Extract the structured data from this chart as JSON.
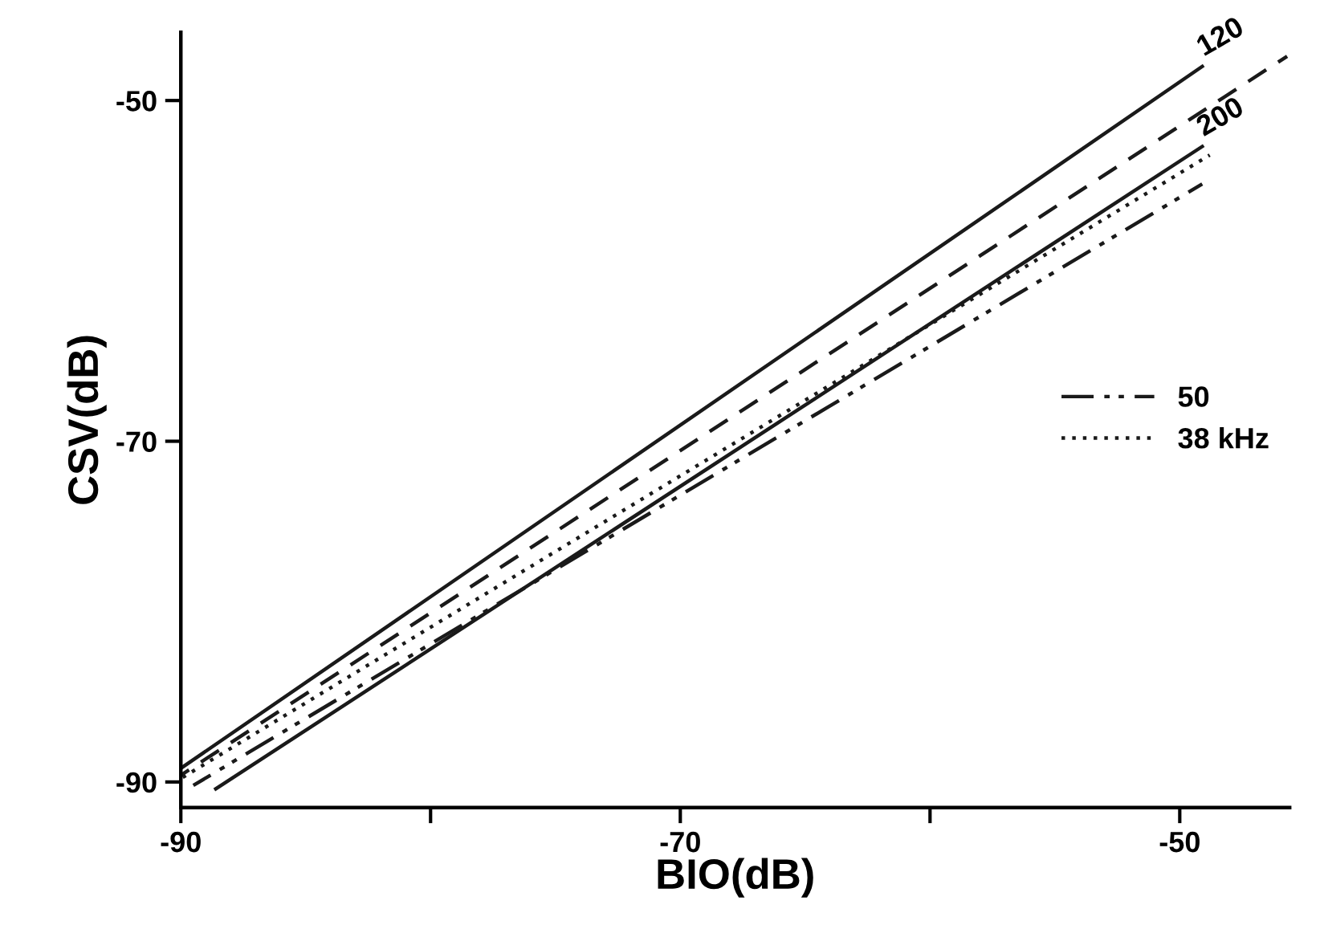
{
  "chart_data": {
    "type": "line",
    "xlabel": "BIO(dB)",
    "ylabel": "CSV(dB)",
    "xlim": [
      -90,
      -45.6
    ],
    "ylim": [
      -91.5,
      -46
    ],
    "xticks": [
      -90,
      {
        "value": -80,
        "label": null
      },
      -70,
      {
        "value": -60,
        "label": null
      },
      -50
    ],
    "yticks": [
      -90,
      -70,
      -50
    ],
    "grid": false,
    "legend": "right",
    "marker": "none",
    "series": [
      {
        "color": "#1a1a1a",
        "line_style": "solid",
        "x": [
          -90,
          -49.1
        ],
        "values": [
          -89.2,
          -48.0
        ]
      },
      {
        "color": "#1a1a1a",
        "line_style": "dashed",
        "x": [
          -90,
          -45.7
        ],
        "values": [
          -89.6,
          -47.4
        ]
      },
      {
        "color": "#1a1a1a",
        "line_style": "solid",
        "x": [
          -88.6,
          -49.1
        ],
        "values": [
          -90.4,
          -52.7
        ]
      },
      {
        "name": "50",
        "color": "#1a1a1a",
        "line_style": "dashdotdot",
        "x": [
          -89.5,
          -49.1
        ],
        "values": [
          -90.2,
          -54.9
        ]
      },
      {
        "name": "38 kHz",
        "color": "#1a1a1a",
        "line_style": "dotted",
        "x": [
          -90,
          -48.8
        ],
        "values": [
          -89.8,
          -53.2
        ]
      }
    ],
    "annotations": [
      {
        "text": "120",
        "x": -49.1,
        "y": -48.0
      },
      {
        "text": "200",
        "x": -49.1,
        "y": -52.7
      }
    ]
  }
}
